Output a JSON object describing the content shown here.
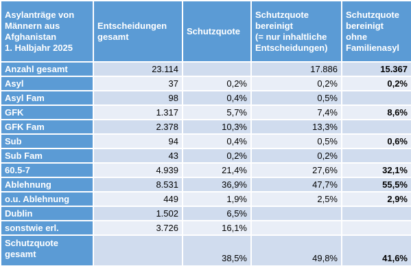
{
  "header": {
    "corner": [
      "Asylanträge von",
      "Männern aus",
      "Afghanistan",
      "1. Halbjahr 2025"
    ],
    "columns": [
      [
        "Entscheidungen",
        "gesamt"
      ],
      [
        "Schutzquote"
      ],
      [
        "Schutzquote",
        "bereinigt",
        "(= nur inhaltliche",
        "Entscheidungen)"
      ],
      [
        "Schutzquote",
        "bereinigt",
        "ohne",
        "Familienasyl"
      ]
    ]
  },
  "rows": [
    {
      "label": [
        "Anzahl gesamt"
      ],
      "values": [
        "23.114",
        "",
        "17.886",
        "15.367"
      ]
    },
    {
      "label": [
        "Asyl"
      ],
      "values": [
        "37",
        "0,2%",
        "0,2%",
        "0,2%"
      ]
    },
    {
      "label": [
        "Asyl Fam"
      ],
      "values": [
        "98",
        "0,4%",
        "0,5%",
        ""
      ]
    },
    {
      "label": [
        "GFK"
      ],
      "values": [
        "1.317",
        "5,7%",
        "7,4%",
        "8,6%"
      ]
    },
    {
      "label": [
        "GFK Fam"
      ],
      "values": [
        "2.378",
        "10,3%",
        "13,3%",
        ""
      ]
    },
    {
      "label": [
        "Sub"
      ],
      "values": [
        "94",
        "0,4%",
        "0,5%",
        "0,6%"
      ]
    },
    {
      "label": [
        "Sub Fam"
      ],
      "values": [
        "43",
        "0,2%",
        "0,2%",
        ""
      ]
    },
    {
      "label": [
        "60.5-7"
      ],
      "values": [
        "4.939",
        "21,4%",
        "27,6%",
        "32,1%"
      ]
    },
    {
      "label": [
        "Ablehnung"
      ],
      "values": [
        "8.531",
        "36,9%",
        "47,7%",
        "55,5%"
      ]
    },
    {
      "label": [
        "o.u. Ablehnung"
      ],
      "values": [
        "449",
        "1,9%",
        "2,5%",
        "2,9%"
      ]
    },
    {
      "label": [
        "Dublin"
      ],
      "values": [
        "1.502",
        "6,5%",
        "",
        ""
      ]
    },
    {
      "label": [
        "sonstwie erl."
      ],
      "values": [
        "3.726",
        "16,1%",
        "",
        ""
      ]
    },
    {
      "label": [
        "Schutzquote",
        "gesamt"
      ],
      "values": [
        "",
        "38,5%",
        "49,8%",
        "41,6%"
      ]
    }
  ]
}
